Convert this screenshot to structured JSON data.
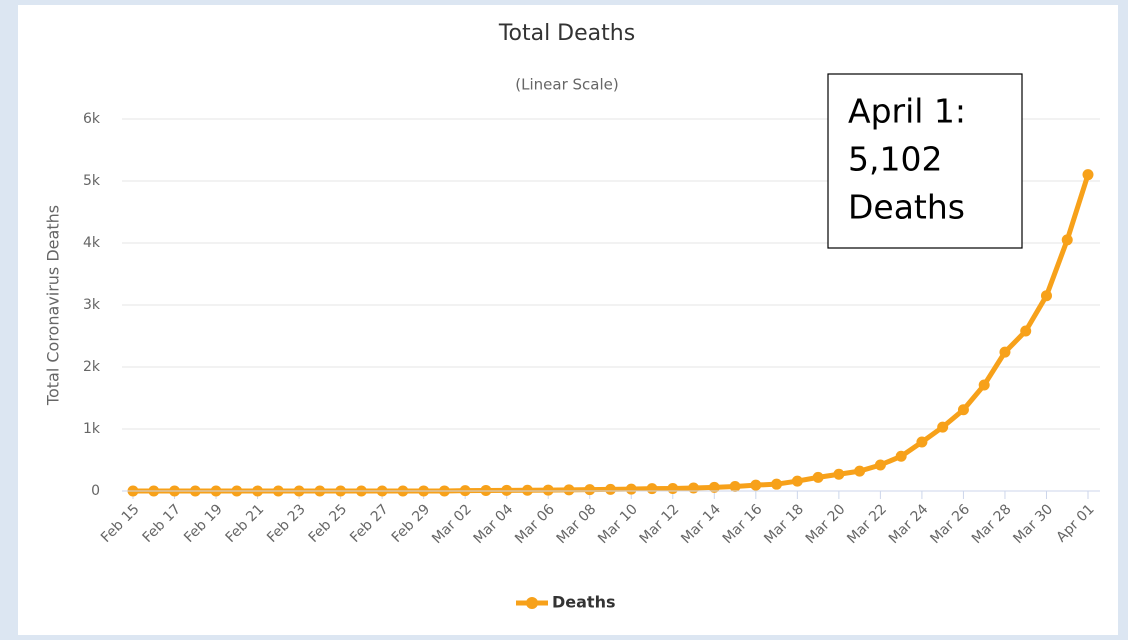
{
  "chart_data": {
    "type": "line",
    "title": "Total Deaths",
    "subtitle": "(Linear Scale)",
    "y_label": "Total Coronavirus Deaths",
    "categories": [
      "Feb 15",
      null,
      "Feb 17",
      null,
      "Feb 19",
      null,
      "Feb 21",
      null,
      "Feb 23",
      null,
      "Feb 25",
      null,
      "Feb 27",
      null,
      "Feb 29",
      null,
      "Mar 02",
      null,
      "Mar 04",
      null,
      "Mar 06",
      null,
      "Mar 08",
      null,
      "Mar 10",
      null,
      "Mar 12",
      null,
      "Mar 14",
      null,
      "Mar 16",
      null,
      "Mar 18",
      null,
      "Mar 20",
      null,
      "Mar 22",
      null,
      "Mar 24",
      null,
      "Mar 26",
      null,
      "Mar 28",
      null,
      "Mar 30",
      null,
      "Apr 01"
    ],
    "series": [
      {
        "name": "Deaths",
        "color": "#f7a11a",
        "values": [
          0,
          0,
          0,
          0,
          0,
          0,
          0,
          0,
          0,
          0,
          0,
          0,
          0,
          0,
          1,
          1,
          6,
          9,
          11,
          12,
          15,
          19,
          22,
          26,
          30,
          38,
          41,
          48,
          58,
          73,
          95,
          110,
          160,
          220,
          270,
          320,
          420,
          560,
          790,
          1030,
          1310,
          1710,
          2240,
          2580,
          3150,
          4050,
          5102
        ]
      }
    ],
    "ylim": [
      0,
      6000
    ],
    "yticks": [
      0,
      {
        "value": 1000,
        "label": "1k"
      },
      {
        "value": 2000,
        "label": "2k"
      },
      {
        "value": 3000,
        "label": "3k"
      },
      {
        "value": 4000,
        "label": "4k"
      },
      {
        "value": 5000,
        "label": "5k"
      },
      {
        "value": 6000,
        "label": "6k"
      }
    ],
    "grid": true,
    "legend": "bottom",
    "annotation": [
      "April 1:",
      "5,102",
      "Deaths"
    ]
  }
}
